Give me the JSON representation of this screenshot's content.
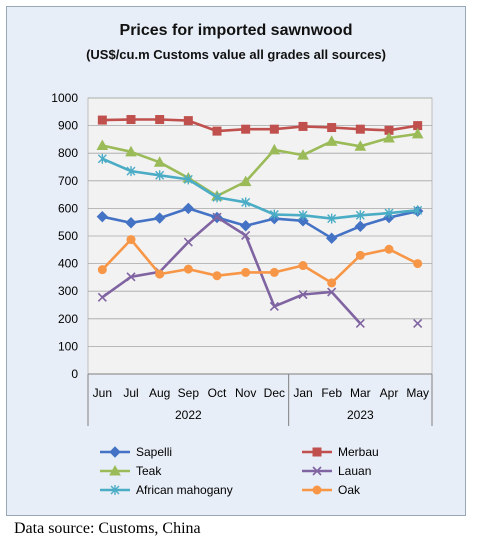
{
  "chart_data": {
    "type": "line",
    "title": "Prices for imported sawnwood",
    "subtitle": "(US$/cu.m Customs value all grades all sources)",
    "categories": [
      "Jun",
      "Jul",
      "Aug",
      "Sep",
      "Oct",
      "Nov",
      "Dec",
      "Jan",
      "Feb",
      "Mar",
      "Apr",
      "May"
    ],
    "year_groups": [
      {
        "label": "2022",
        "from": 0,
        "to": 6
      },
      {
        "label": "2023",
        "from": 7,
        "to": 11
      }
    ],
    "ylim": [
      0,
      1000
    ],
    "yticks": [
      0,
      100,
      200,
      300,
      400,
      500,
      600,
      700,
      800,
      900,
      1000
    ],
    "grid": true,
    "legend_placement": "bottom",
    "series": [
      {
        "name": "Sapelli",
        "color": "#4472c4",
        "marker": "diamond",
        "values": [
          570,
          548,
          565,
          600,
          567,
          537,
          563,
          555,
          492,
          535,
          567,
          590
        ]
      },
      {
        "name": "Merbau",
        "color": "#c0504d",
        "marker": "square",
        "values": [
          920,
          922,
          922,
          918,
          880,
          887,
          887,
          897,
          893,
          887,
          883,
          900
        ]
      },
      {
        "name": "Teak",
        "color": "#9bbb59",
        "marker": "triangle",
        "values": [
          828,
          805,
          767,
          710,
          645,
          697,
          812,
          793,
          843,
          825,
          855,
          870
        ]
      },
      {
        "name": "Lauan",
        "color": "#8064a2",
        "marker": "x",
        "values": [
          278,
          352,
          370,
          478,
          568,
          502,
          245,
          288,
          297,
          183,
          null,
          183
        ]
      },
      {
        "name": "African mahogany",
        "color": "#4bacc6",
        "marker": "star",
        "values": [
          780,
          735,
          720,
          705,
          640,
          622,
          578,
          575,
          563,
          575,
          583,
          593
        ]
      },
      {
        "name": "Oak",
        "color": "#f79646",
        "marker": "circle",
        "values": [
          378,
          487,
          362,
          380,
          356,
          368,
          368,
          393,
          330,
          430,
          452,
          400
        ]
      }
    ]
  },
  "source": "Data source: Customs, China"
}
